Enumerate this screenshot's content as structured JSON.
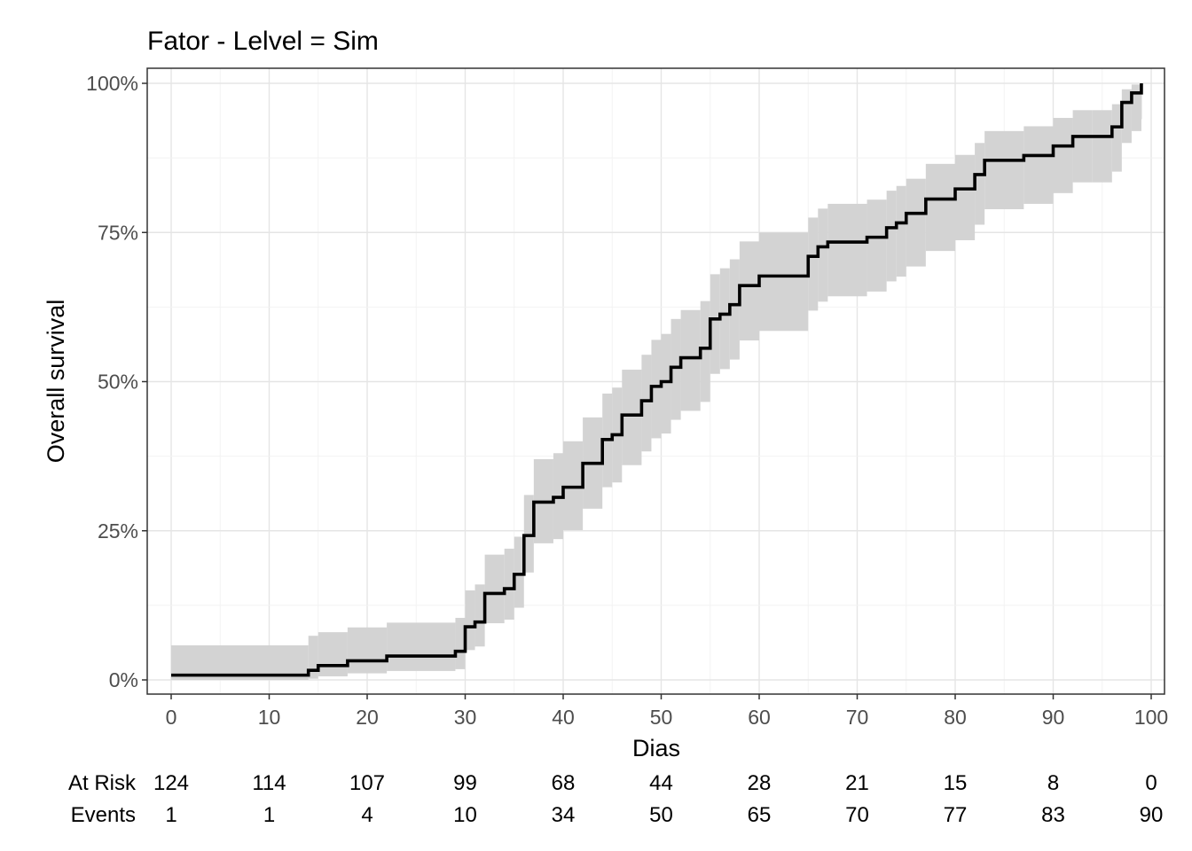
{
  "chart_data": {
    "type": "line",
    "step": true,
    "title": "Fator - Lelvel = Sim",
    "xlabel": "Dias",
    "ylabel": "Overall survival",
    "xlim": [
      0,
      100
    ],
    "ylim": [
      0,
      1
    ],
    "x_ticks": [
      "0",
      "10",
      "20",
      "30",
      "40",
      "50",
      "60",
      "70",
      "80",
      "90",
      "100"
    ],
    "y_ticks": [
      "0%",
      "25%",
      "50%",
      "75%",
      "100%"
    ],
    "grid": true,
    "line_color": "#000000",
    "band_color": "#d3d3d3",
    "series": [
      {
        "x": [
          0,
          14,
          15,
          18,
          22,
          29,
          30,
          31,
          32,
          34,
          35,
          36,
          37,
          39,
          40,
          42,
          44,
          45,
          46,
          48,
          49,
          50,
          51,
          52,
          54,
          55,
          56,
          57,
          58,
          60,
          65,
          66,
          67,
          71,
          73,
          74,
          75,
          77,
          80,
          82,
          83,
          87,
          90,
          92,
          94,
          96,
          97,
          98,
          99
        ],
        "y": [
          0.008,
          0.016,
          0.024,
          0.032,
          0.04,
          0.048,
          0.089,
          0.097,
          0.145,
          0.153,
          0.177,
          0.242,
          0.298,
          0.306,
          0.323,
          0.363,
          0.403,
          0.411,
          0.444,
          0.468,
          0.492,
          0.5,
          0.524,
          0.54,
          0.556,
          0.605,
          0.613,
          0.629,
          0.661,
          0.677,
          0.71,
          0.726,
          0.734,
          0.742,
          0.758,
          0.766,
          0.782,
          0.806,
          0.823,
          0.847,
          0.871,
          0.879,
          0.895,
          0.911,
          0.911,
          0.927,
          0.968,
          0.984,
          1.0
        ],
        "lower": [
          0.0,
          0.002,
          0.006,
          0.011,
          0.015,
          0.018,
          0.05,
          0.056,
          0.095,
          0.101,
          0.121,
          0.18,
          0.229,
          0.236,
          0.251,
          0.287,
          0.323,
          0.331,
          0.36,
          0.383,
          0.405,
          0.413,
          0.436,
          0.451,
          0.466,
          0.513,
          0.521,
          0.537,
          0.569,
          0.585,
          0.619,
          0.634,
          0.643,
          0.651,
          0.668,
          0.676,
          0.693,
          0.719,
          0.737,
          0.763,
          0.789,
          0.798,
          0.816,
          0.834,
          0.834,
          0.852,
          0.9,
          0.92,
          0.94
        ],
        "upper": [
          0.058,
          0.074,
          0.08,
          0.088,
          0.096,
          0.104,
          0.15,
          0.16,
          0.21,
          0.22,
          0.24,
          0.31,
          0.37,
          0.38,
          0.4,
          0.44,
          0.48,
          0.49,
          0.52,
          0.545,
          0.57,
          0.58,
          0.605,
          0.62,
          0.635,
          0.68,
          0.69,
          0.705,
          0.735,
          0.75,
          0.775,
          0.79,
          0.798,
          0.805,
          0.82,
          0.828,
          0.84,
          0.865,
          0.88,
          0.9,
          0.92,
          0.928,
          0.942,
          0.955,
          0.955,
          0.965,
          0.99,
          0.998,
          1.0
        ]
      }
    ],
    "risk_table": {
      "times": [
        0,
        10,
        20,
        30,
        40,
        50,
        60,
        70,
        80,
        90,
        100
      ],
      "rows": [
        {
          "label": "At Risk",
          "values": [
            "124",
            "114",
            "107",
            "99",
            "68",
            "44",
            "28",
            "21",
            "15",
            "8",
            "0"
          ]
        },
        {
          "label": "Events",
          "values": [
            "1",
            "1",
            "4",
            "10",
            "34",
            "50",
            "65",
            "70",
            "77",
            "83",
            "90"
          ]
        }
      ]
    }
  }
}
